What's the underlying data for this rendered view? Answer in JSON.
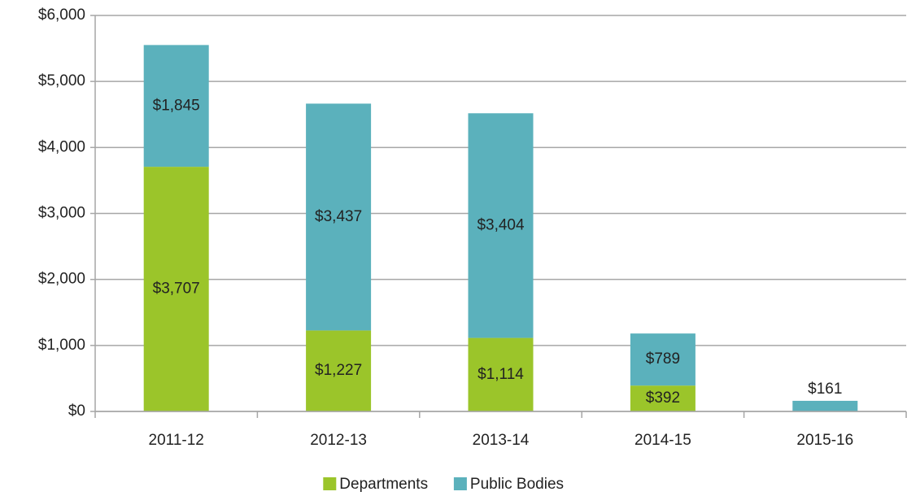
{
  "chart_data": {
    "type": "stacked_bar",
    "categories": [
      "2011-12",
      "2012-13",
      "2013-14",
      "2014-15",
      "2015-16"
    ],
    "series": [
      {
        "name": "Departments",
        "color": "#9bc52a",
        "values": [
          3707,
          1227,
          1114,
          392,
          null
        ],
        "value_labels": [
          "$3,707",
          "$1,227",
          "$1,114",
          "$392",
          null
        ]
      },
      {
        "name": "Public Bodies",
        "color": "#5bb1bc",
        "values": [
          1845,
          3437,
          3404,
          789,
          161
        ],
        "value_labels": [
          "$1,845",
          "$3,437",
          "$3,404",
          "$789",
          "$161"
        ]
      }
    ],
    "ylim": [
      0,
      6000
    ],
    "yticks": [
      {
        "value": 0,
        "label": "$0"
      },
      {
        "value": 1000,
        "label": "$1,000"
      },
      {
        "value": 2000,
        "label": "$2,000"
      },
      {
        "value": 3000,
        "label": "$3,000"
      },
      {
        "value": 4000,
        "label": "$4,000"
      },
      {
        "value": 5000,
        "label": "$5,000"
      },
      {
        "value": 6000,
        "label": "$6,000"
      }
    ],
    "grid": true,
    "legend": "bottom"
  }
}
